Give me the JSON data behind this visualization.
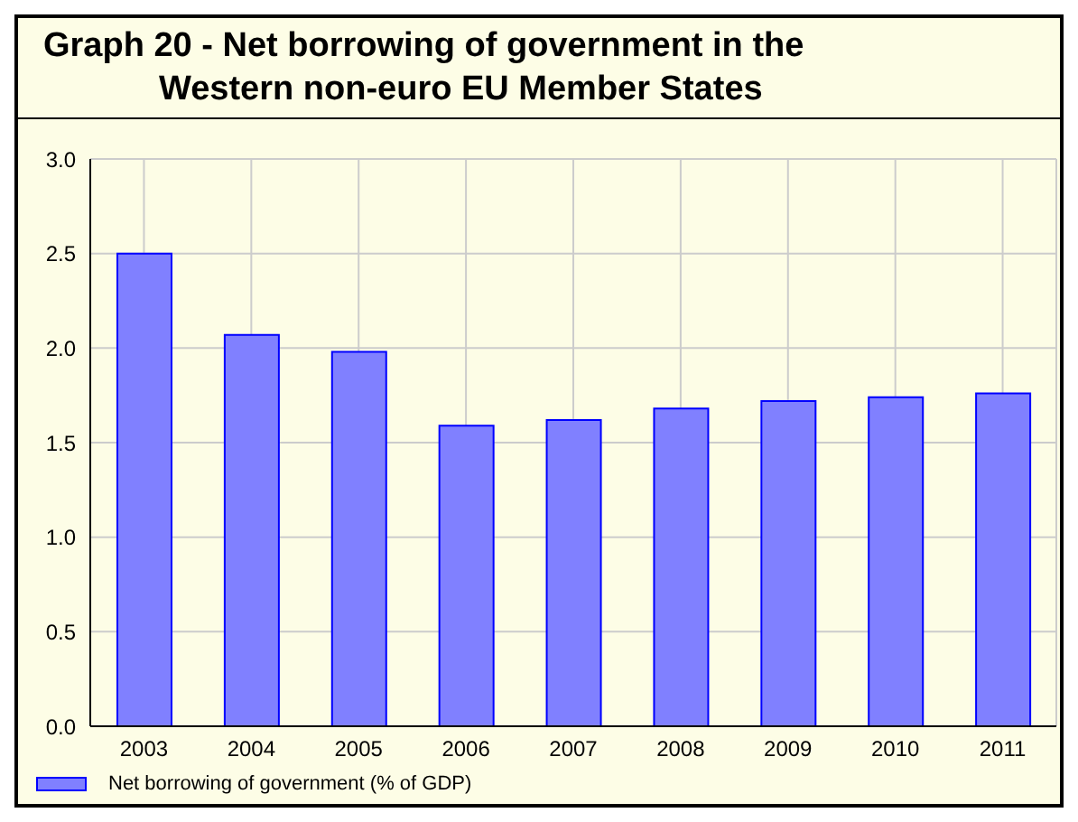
{
  "chart_data": {
    "type": "bar",
    "title": "Graph 20 - Net borrowing of government in the\nWestern non-euro EU Member States",
    "categories": [
      "2003",
      "2004",
      "2005",
      "2006",
      "2007",
      "2008",
      "2009",
      "2010",
      "2011"
    ],
    "series": [
      {
        "name": "Net borrowing of government (% of GDP)",
        "color": "#8080ff",
        "values": [
          2.5,
          2.07,
          1.98,
          1.59,
          1.62,
          1.68,
          1.72,
          1.74,
          1.76
        ]
      }
    ],
    "ylim": [
      0,
      3
    ],
    "yticks": [
      {
        "value": 0,
        "label": "0.0"
      },
      {
        "value": 0.5,
        "label": "0.5"
      },
      {
        "value": 1,
        "label": "1.0"
      },
      {
        "value": 1.5,
        "label": "1.5"
      },
      {
        "value": 2,
        "label": "2.0"
      },
      {
        "value": 2.5,
        "label": "2.5"
      },
      {
        "value": 3,
        "label": "3.0"
      }
    ],
    "grid": true,
    "legend": "bottom left"
  }
}
